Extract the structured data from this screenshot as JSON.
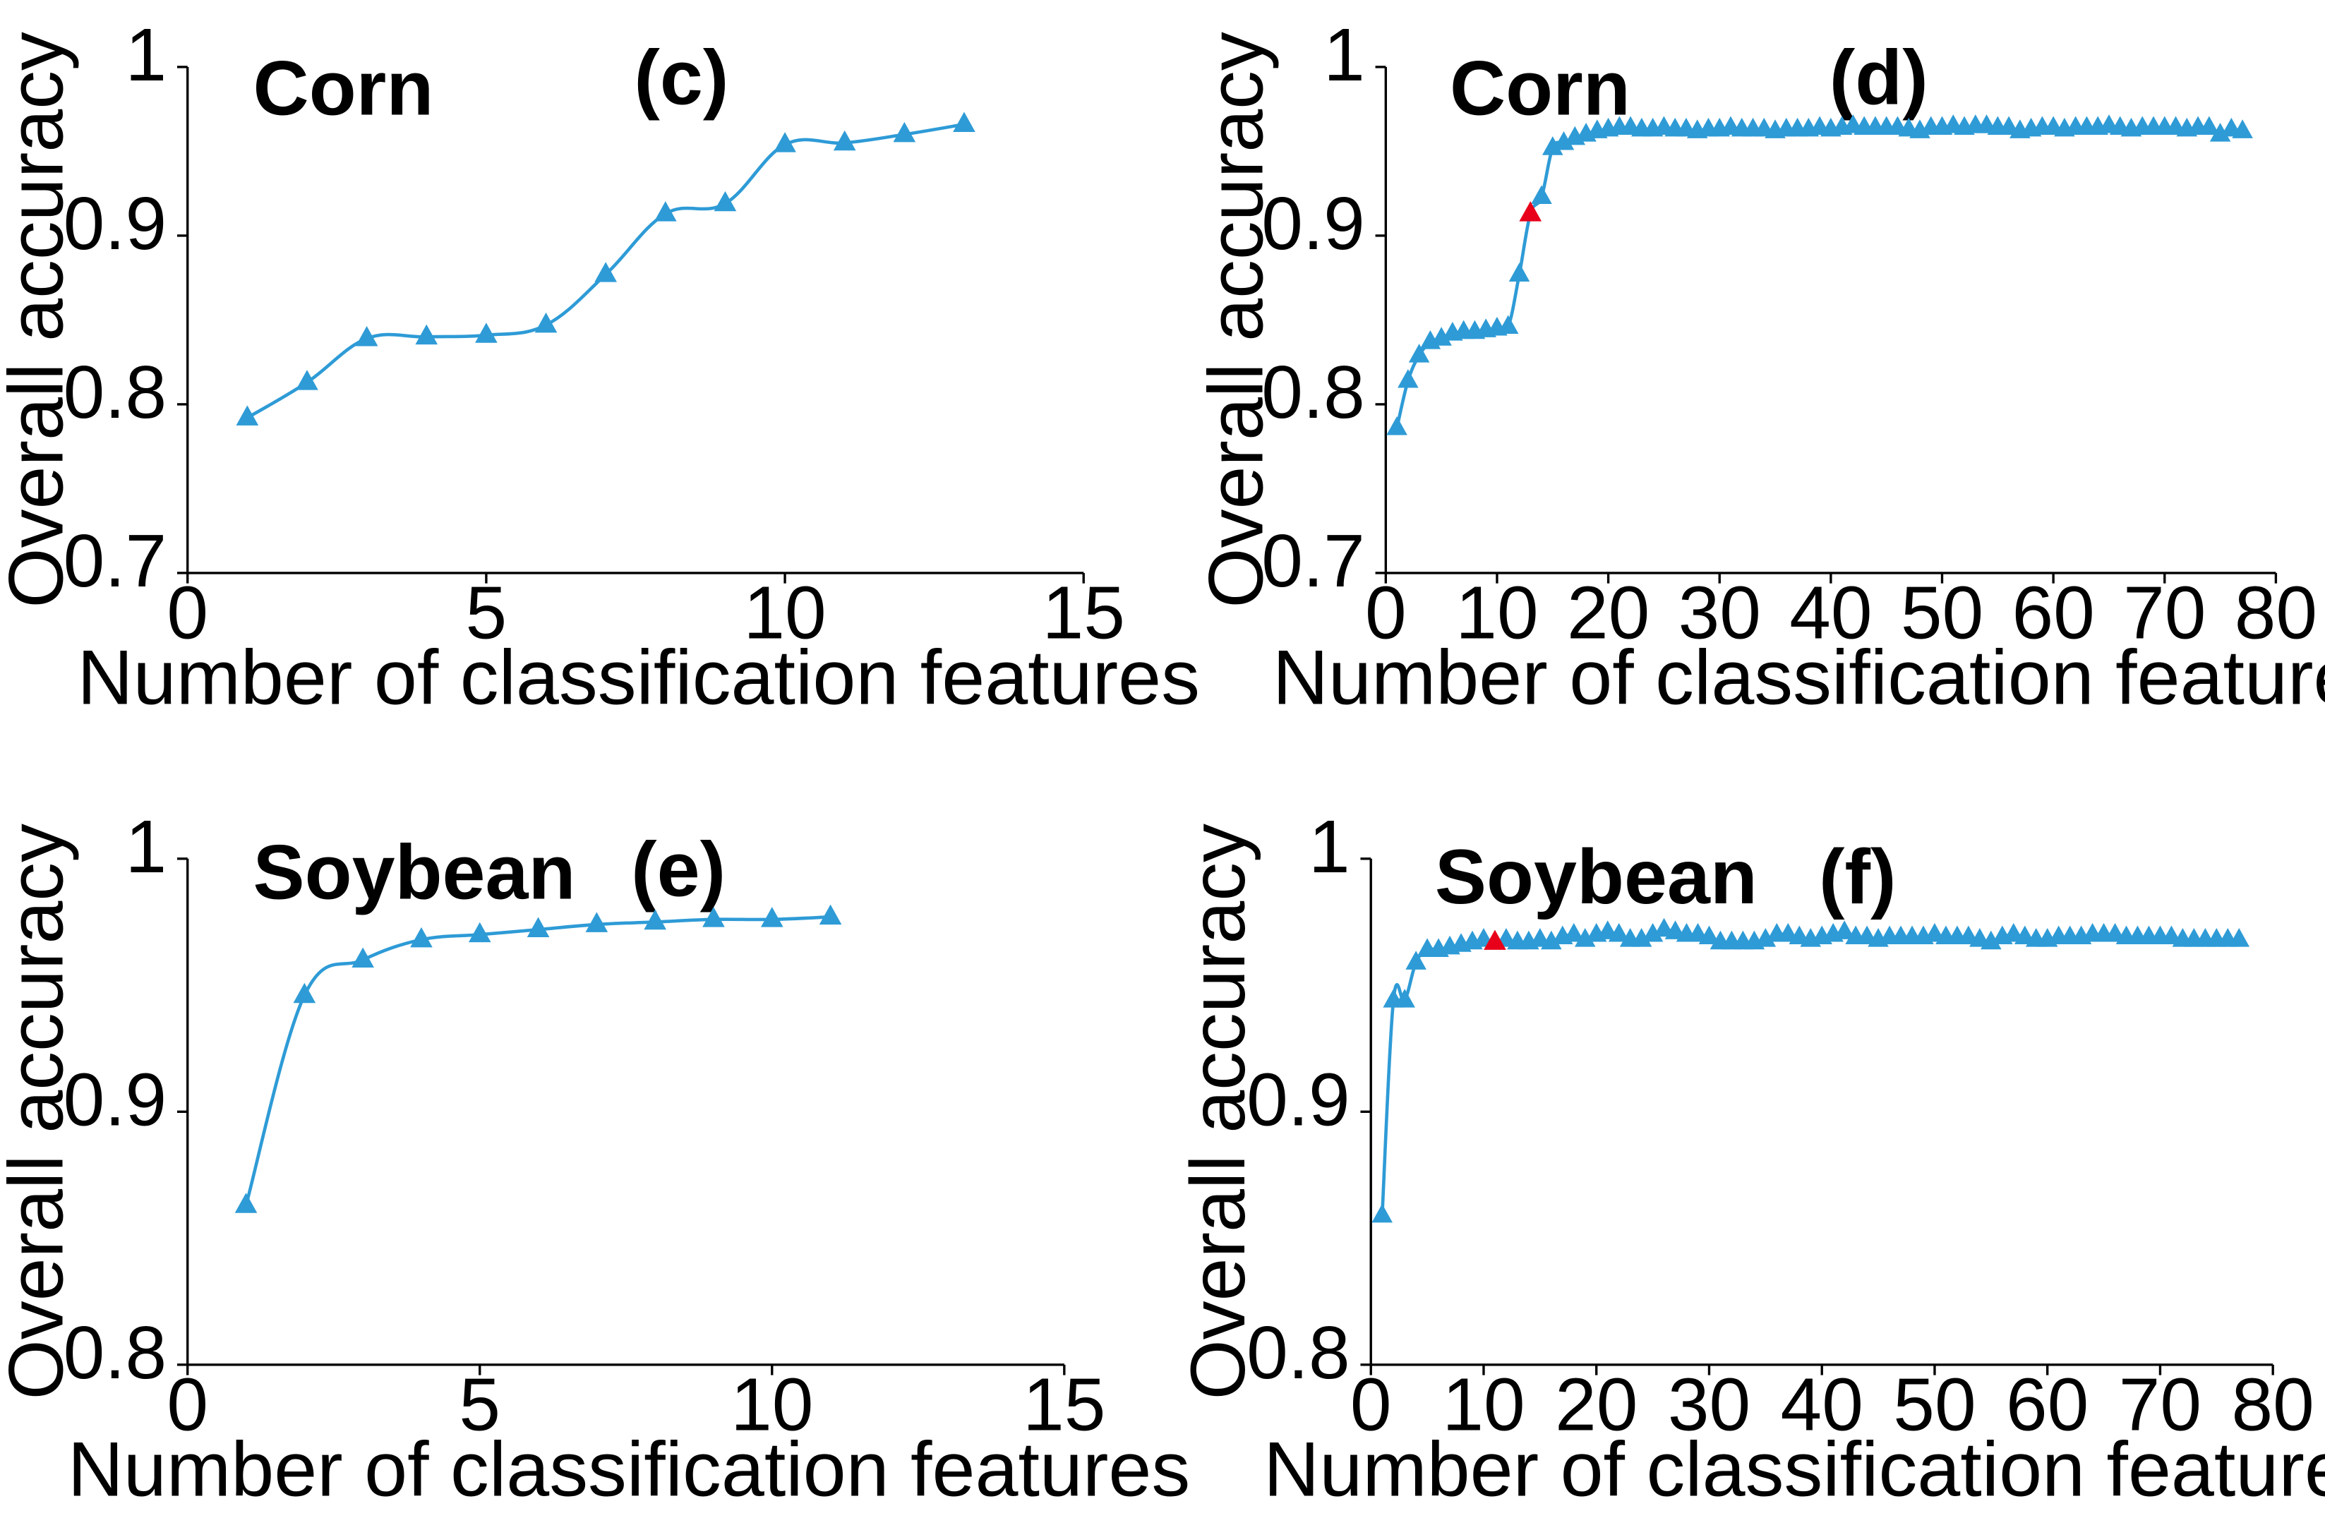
{
  "colors": {
    "series": "#2E9BD6",
    "highlight": "#E8001A",
    "axis": "#000000",
    "background": "#FFFFFF"
  },
  "chart_data": [
    {
      "id": "c",
      "type": "line",
      "panel_label": "(c)",
      "crop": "Corn",
      "xlabel": "Number of classification features",
      "ylabel": "Overall accuracy",
      "xlim": [
        0,
        15
      ],
      "ylim": [
        0.7,
        1
      ],
      "xticks": [
        "0",
        "5",
        "10",
        "15"
      ],
      "yticks": [
        "0.7",
        "0.8",
        "0.9",
        "1"
      ],
      "grid": false,
      "series": [
        {
          "x": [
            1,
            2,
            3,
            4,
            5,
            6,
            7,
            8,
            9,
            10,
            11,
            12,
            13
          ],
          "y": [
            0.792,
            0.813,
            0.839,
            0.84,
            0.841,
            0.847,
            0.877,
            0.913,
            0.919,
            0.954,
            0.955,
            0.96,
            0.966
          ]
        }
      ]
    },
    {
      "id": "d",
      "type": "line",
      "panel_label": "(d)",
      "crop": "Corn",
      "xlabel": "Number of classification features",
      "ylabel": "Overall accuracy",
      "xlim": [
        0,
        80
      ],
      "ylim": [
        0.7,
        1
      ],
      "xticks": [
        "0",
        "10",
        "20",
        "30",
        "40",
        "50",
        "60",
        "70",
        "80"
      ],
      "yticks": [
        "0.7",
        "0.8",
        "0.9",
        "1"
      ],
      "grid": false,
      "highlight": {
        "x": 13,
        "y": 0.913
      },
      "series": [
        {
          "x": [
            1,
            2,
            3,
            4,
            5,
            6,
            7,
            8,
            9,
            10,
            11,
            12,
            13,
            14,
            15,
            16,
            17,
            18,
            19,
            20,
            21,
            22,
            23,
            24,
            25,
            26,
            27,
            28,
            29,
            30,
            31,
            32,
            33,
            34,
            35,
            36,
            37,
            38,
            39,
            40,
            41,
            42,
            43,
            44,
            45,
            46,
            47,
            48,
            49,
            50,
            51,
            52,
            53,
            54,
            55,
            56,
            57,
            58,
            59,
            60,
            61,
            62,
            63,
            64,
            65,
            66,
            67,
            68,
            69,
            70,
            71,
            72,
            73,
            74,
            75,
            76,
            77
          ],
          "y": [
            0.786,
            0.814,
            0.829,
            0.837,
            0.839,
            0.842,
            0.843,
            0.843,
            0.844,
            0.845,
            0.846,
            0.877,
            0.913,
            0.923,
            0.952,
            0.955,
            0.958,
            0.96,
            0.962,
            0.963,
            0.964,
            0.964,
            0.963,
            0.963,
            0.964,
            0.963,
            0.963,
            0.962,
            0.963,
            0.963,
            0.964,
            0.963,
            0.963,
            0.963,
            0.962,
            0.963,
            0.963,
            0.963,
            0.964,
            0.963,
            0.964,
            0.965,
            0.964,
            0.964,
            0.964,
            0.964,
            0.963,
            0.962,
            0.964,
            0.964,
            0.965,
            0.964,
            0.965,
            0.965,
            0.964,
            0.964,
            0.962,
            0.963,
            0.964,
            0.964,
            0.963,
            0.964,
            0.964,
            0.964,
            0.965,
            0.964,
            0.963,
            0.964,
            0.964,
            0.964,
            0.964,
            0.963,
            0.964,
            0.964,
            0.96,
            0.963,
            0.962
          ]
        }
      ]
    },
    {
      "id": "e",
      "type": "line",
      "panel_label": "(e)",
      "crop": "Soybean",
      "xlabel": "Number of classification features",
      "ylabel": "Overall accuracy",
      "xlim": [
        0,
        15
      ],
      "ylim": [
        0.8,
        1
      ],
      "xticks": [
        "0",
        "5",
        "10",
        "15"
      ],
      "yticks": [
        "0.8",
        "0.9",
        "1"
      ],
      "grid": false,
      "series": [
        {
          "x": [
            1,
            2,
            3,
            4,
            5,
            6,
            7,
            8,
            9,
            10,
            11
          ],
          "y": [
            0.863,
            0.946,
            0.96,
            0.968,
            0.97,
            0.972,
            0.974,
            0.975,
            0.976,
            0.976,
            0.977
          ]
        }
      ]
    },
    {
      "id": "f",
      "type": "line",
      "panel_label": "(f)",
      "crop": "Soybean",
      "xlabel": "Number of classification features",
      "ylabel": "Overall accuracy",
      "xlim": [
        0,
        80
      ],
      "ylim": [
        0.8,
        1
      ],
      "xticks": [
        "0",
        "10",
        "20",
        "30",
        "40",
        "50",
        "60",
        "70",
        "80"
      ],
      "yticks": [
        "0.8",
        "0.9",
        "1"
      ],
      "grid": false,
      "highlight": {
        "x": 11,
        "y": 0.967
      },
      "series": [
        {
          "x": [
            1,
            2,
            3,
            4,
            5,
            6,
            7,
            8,
            9,
            10,
            11,
            12,
            13,
            14,
            15,
            16,
            17,
            18,
            19,
            20,
            21,
            22,
            23,
            24,
            25,
            26,
            27,
            28,
            29,
            30,
            31,
            32,
            33,
            34,
            35,
            36,
            37,
            38,
            39,
            40,
            41,
            42,
            43,
            44,
            45,
            46,
            47,
            48,
            49,
            50,
            51,
            52,
            53,
            54,
            55,
            56,
            57,
            58,
            59,
            60,
            61,
            62,
            63,
            64,
            65,
            66,
            67,
            68,
            69,
            70,
            71,
            72,
            73,
            74,
            75,
            76,
            77
          ],
          "y": [
            0.859,
            0.944,
            0.944,
            0.959,
            0.964,
            0.964,
            0.965,
            0.966,
            0.967,
            0.968,
            0.967,
            0.968,
            0.967,
            0.967,
            0.968,
            0.967,
            0.969,
            0.97,
            0.968,
            0.97,
            0.971,
            0.97,
            0.968,
            0.968,
            0.97,
            0.972,
            0.971,
            0.97,
            0.97,
            0.969,
            0.967,
            0.967,
            0.967,
            0.967,
            0.968,
            0.97,
            0.97,
            0.969,
            0.968,
            0.969,
            0.97,
            0.971,
            0.969,
            0.969,
            0.968,
            0.969,
            0.969,
            0.969,
            0.969,
            0.97,
            0.969,
            0.969,
            0.969,
            0.968,
            0.967,
            0.969,
            0.97,
            0.969,
            0.968,
            0.968,
            0.969,
            0.969,
            0.969,
            0.97,
            0.97,
            0.97,
            0.969,
            0.969,
            0.969,
            0.969,
            0.969,
            0.968,
            0.968,
            0.968,
            0.968,
            0.968,
            0.968
          ]
        }
      ]
    }
  ]
}
